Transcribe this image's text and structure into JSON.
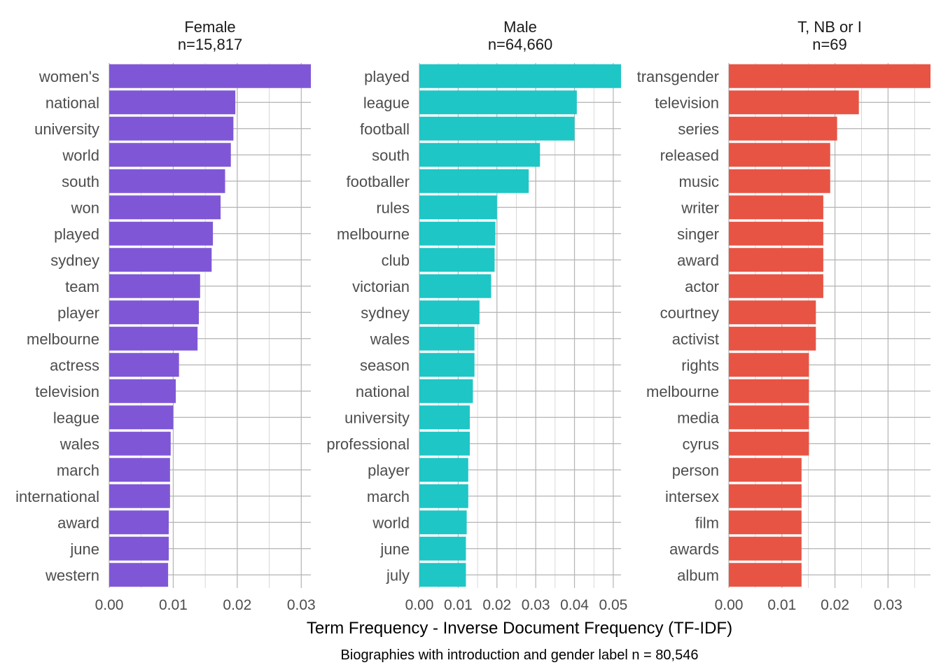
{
  "chart_data": {
    "type": "bar",
    "orientation": "horizontal",
    "xlabel": "Term Frequency - Inverse Document Frequency (TF-IDF)",
    "caption": "Biographies with introduction and gender label n = 80,546",
    "grid": true,
    "legend": "none",
    "panels": [
      {
        "title": "Female",
        "subtitle": "n=15,817",
        "color": "#7f57d6",
        "xlim": [
          0,
          0.0315
        ],
        "xticks": [
          0.0,
          0.01,
          0.02,
          0.03
        ],
        "xtick_labels": [
          "0.00",
          "0.01",
          "0.02",
          "0.03"
        ],
        "categories": [
          "women's",
          "national",
          "university",
          "world",
          "south",
          "won",
          "played",
          "sydney",
          "team",
          "player",
          "melbourne",
          "actress",
          "television",
          "league",
          "wales",
          "march",
          "international",
          "award",
          "june",
          "western"
        ],
        "values": [
          0.0315,
          0.0197,
          0.0194,
          0.019,
          0.0181,
          0.0174,
          0.0162,
          0.016,
          0.0142,
          0.014,
          0.0138,
          0.0109,
          0.0104,
          0.01,
          0.0096,
          0.0095,
          0.0095,
          0.0093,
          0.0093,
          0.0092
        ]
      },
      {
        "title": "Male",
        "subtitle": "n=64,660",
        "color": "#1fc6c6",
        "xlim": [
          0,
          0.052
        ],
        "xticks": [
          0.0,
          0.01,
          0.02,
          0.03,
          0.04,
          0.05
        ],
        "xtick_labels": [
          "0.00",
          "0.01",
          "0.02",
          "0.03",
          "0.04",
          "0.05"
        ],
        "categories": [
          "played",
          "league",
          "football",
          "south",
          "footballer",
          "rules",
          "melbourne",
          "club",
          "victorian",
          "sydney",
          "wales",
          "season",
          "national",
          "university",
          "professional",
          "player",
          "march",
          "world",
          "june",
          "july"
        ],
        "values": [
          0.052,
          0.0406,
          0.04,
          0.0311,
          0.0282,
          0.02,
          0.0196,
          0.0194,
          0.0185,
          0.0155,
          0.0142,
          0.0142,
          0.0138,
          0.013,
          0.013,
          0.0126,
          0.0126,
          0.0122,
          0.012,
          0.012
        ]
      },
      {
        "title": "T, NB or I",
        "subtitle": "n=69",
        "color": "#e85444",
        "xlim": [
          0,
          0.038
        ],
        "xticks": [
          0.0,
          0.01,
          0.02,
          0.03
        ],
        "xtick_labels": [
          "0.00",
          "0.01",
          "0.02",
          "0.03"
        ],
        "categories": [
          "transgender",
          "television",
          "series",
          "released",
          "music",
          "writer",
          "singer",
          "award",
          "actor",
          "courtney",
          "activist",
          "rights",
          "melbourne",
          "media",
          "cyrus",
          "person",
          "intersex",
          "film",
          "awards",
          "album"
        ],
        "values": [
          0.038,
          0.0245,
          0.0204,
          0.0191,
          0.0191,
          0.0178,
          0.0178,
          0.0178,
          0.0178,
          0.0164,
          0.0164,
          0.0151,
          0.0151,
          0.0151,
          0.0151,
          0.0137,
          0.0137,
          0.0137,
          0.0137,
          0.0137
        ]
      }
    ]
  }
}
